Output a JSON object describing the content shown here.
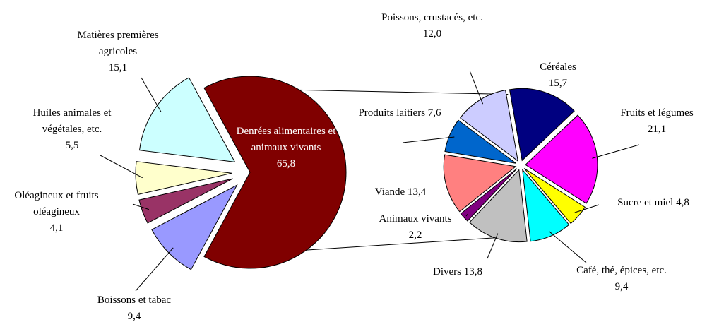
{
  "chart_data": [
    {
      "type": "pie",
      "categories": [
        "Denrées alimentaires et animaux vivants",
        "Boissons et tabac",
        "Oléagineux et fruits oléagineux",
        "Huiles animales et végétales, etc.",
        "Matières premières agricoles"
      ],
      "values": [
        65.8,
        9.4,
        4.1,
        5.5,
        15.1
      ],
      "value_labels": [
        "65,8",
        "9,4",
        "4,1",
        "5,5",
        "15,1"
      ],
      "colors": [
        "#800000",
        "#9999ff",
        "#993366",
        "#ffffcc",
        "#ccffff"
      ]
    },
    {
      "type": "pie",
      "categories": [
        "Céréales",
        "Fruits et légumes",
        "Sucre et miel",
        "Café, thé, épices, etc.",
        "Divers",
        "Animaux vivants",
        "Viande",
        "Produits laitiers",
        "Poissons, crustacés, etc."
      ],
      "values": [
        15.7,
        21.1,
        4.8,
        9.4,
        13.8,
        2.2,
        13.4,
        7.6,
        12.0
      ],
      "value_labels": [
        "15,7",
        "21,1",
        "4,8",
        "9,4",
        "13,8",
        "2,2",
        "13,4",
        "7,6",
        "12,0"
      ],
      "colors": [
        "#000080",
        "#ff00ff",
        "#ffff00",
        "#00ffff",
        "#c0c0c0",
        "#800080",
        "#ff8080",
        "#0066cc",
        "#ccccff"
      ]
    }
  ]
}
